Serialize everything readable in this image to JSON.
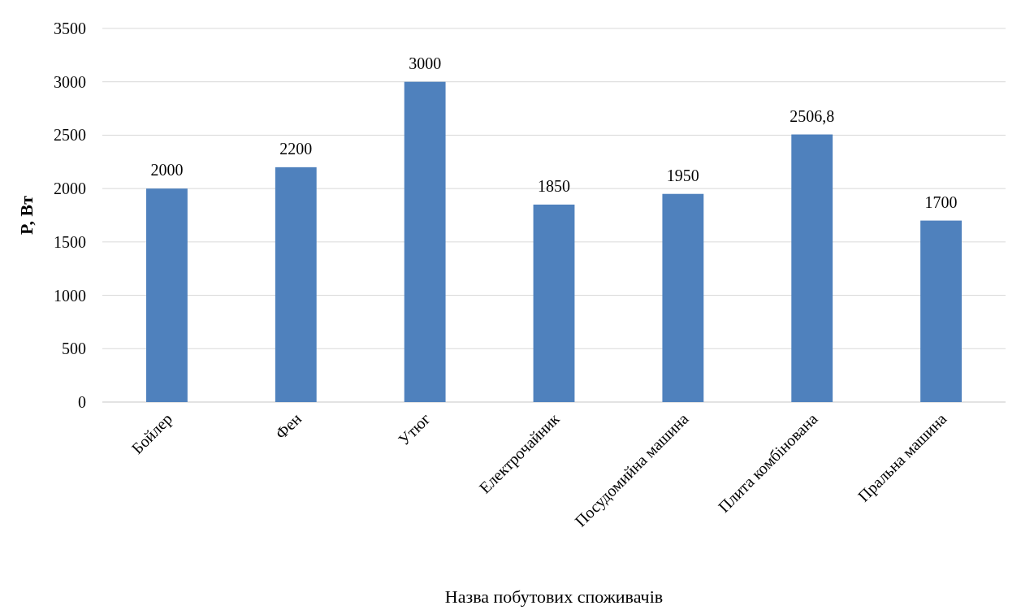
{
  "chart_data": {
    "type": "bar",
    "xlabel": "Назва побутових споживачів",
    "ylabel": "P, Вт",
    "categories": [
      "Бойлер",
      "Фен",
      "Утюг",
      "Електрочайник",
      "Посудомийна машина",
      "Плита комбінована",
      "Пральна машина"
    ],
    "values": [
      2000,
      2200,
      3000,
      1850,
      1950,
      2506.8,
      1700
    ],
    "value_labels": [
      "2000",
      "2200",
      "3000",
      "1850",
      "1950",
      "2506,8",
      "1700"
    ],
    "color": "#4f81bd",
    "ylim": [
      0,
      3500
    ],
    "yticks": [
      0,
      500,
      1000,
      1500,
      2000,
      2500,
      3000,
      3500
    ],
    "grid": "y"
  }
}
